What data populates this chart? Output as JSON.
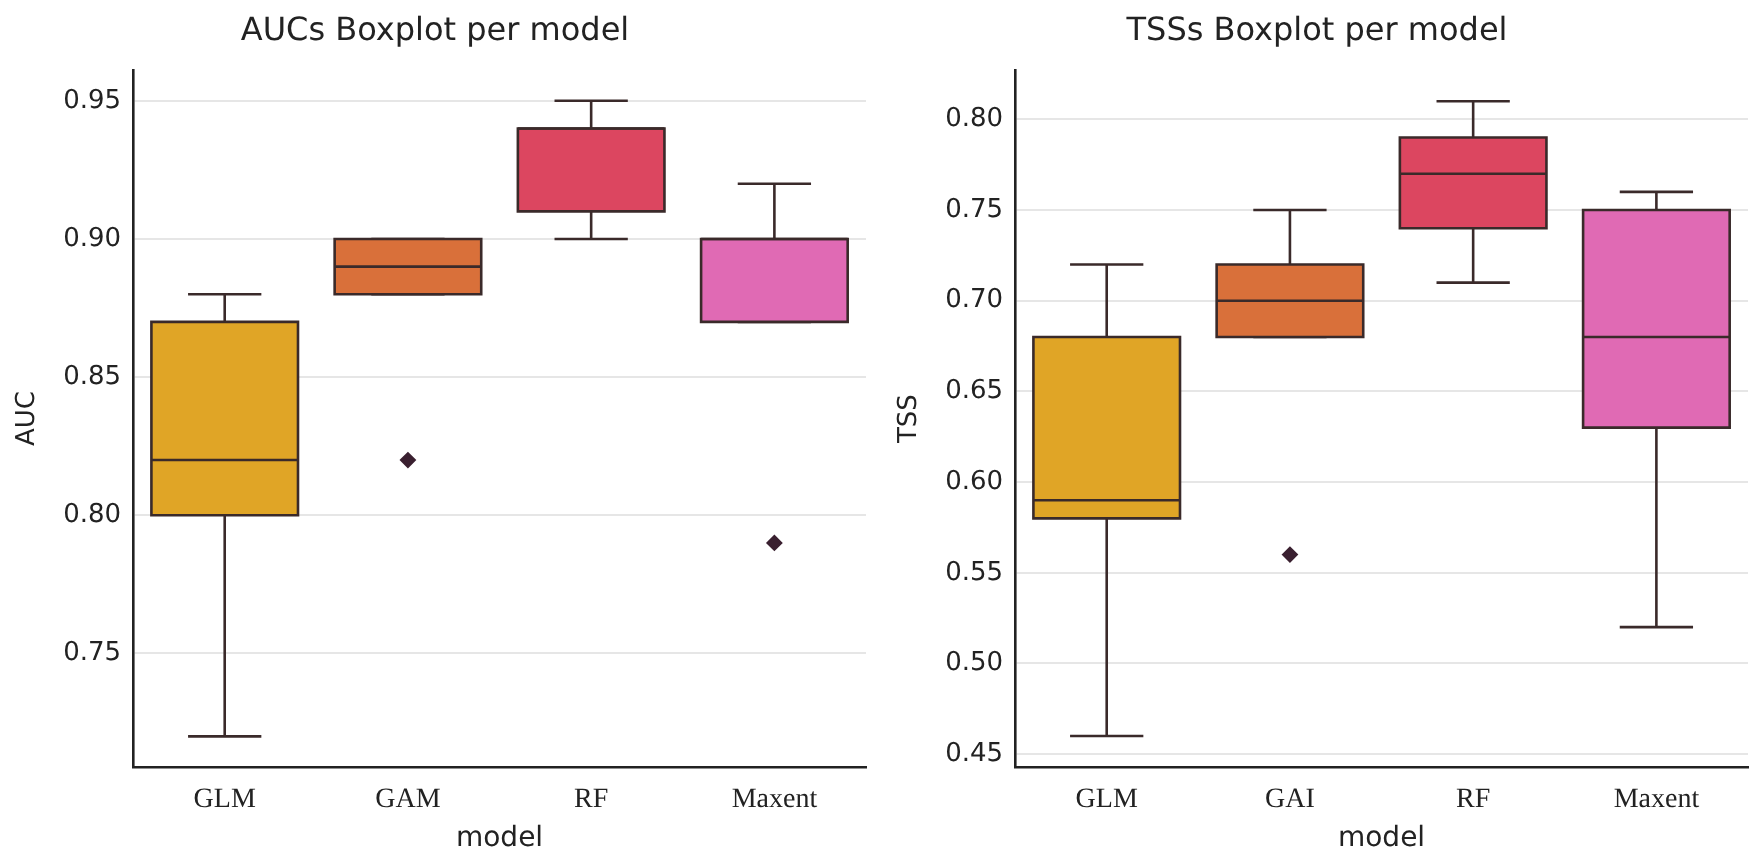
{
  "chart_data": [
    {
      "type": "box",
      "title": "AUCs Boxplot per model",
      "xlabel": "model",
      "ylabel": "AUC",
      "categories": [
        "GLM",
        "GAM",
        "RF",
        "Maxent"
      ],
      "colors": [
        "#e0a526",
        "#d9703a",
        "#dc4660",
        "#e06ab4"
      ],
      "boxes": [
        {
          "low": 0.72,
          "q1": 0.8,
          "median": 0.82,
          "q3": 0.87,
          "high": 0.88
        },
        {
          "low": 0.88,
          "q1": 0.88,
          "median": 0.89,
          "q3": 0.9,
          "high": 0.9,
          "outliers": [
            0.82
          ]
        },
        {
          "low": 0.9,
          "q1": 0.91,
          "median": 0.94,
          "q3": 0.94,
          "high": 0.95
        },
        {
          "low": 0.87,
          "q1": 0.87,
          "median": 0.9,
          "q3": 0.9,
          "high": 0.92,
          "outliers": [
            0.79
          ]
        }
      ],
      "ylim": [
        0.709,
        0.961
      ],
      "yticks": [
        0.75,
        {
          "value": 0.8,
          "label": "0.80"
        },
        0.85,
        {
          "value": 0.9,
          "label": "0.90"
        },
        0.95
      ],
      "grid": "y",
      "marker": "diamond"
    },
    {
      "type": "box",
      "title": "TSSs Boxplot per model",
      "xlabel": "model",
      "ylabel": "TSS",
      "categories": [
        "GLM",
        "GAI",
        "RF",
        "Maxent"
      ],
      "colors": [
        "#e0a526",
        "#d9703a",
        "#dc4660",
        "#e06ab4"
      ],
      "boxes": [
        {
          "low": 0.46,
          "q1": 0.58,
          "median": 0.59,
          "q3": 0.68,
          "high": 0.72
        },
        {
          "low": 0.68,
          "q1": 0.68,
          "median": 0.7,
          "q3": 0.72,
          "high": 0.75,
          "outliers": [
            0.56
          ]
        },
        {
          "low": 0.71,
          "q1": 0.74,
          "median": 0.77,
          "q3": 0.79,
          "high": 0.81
        },
        {
          "low": 0.52,
          "q1": 0.63,
          "median": 0.68,
          "q3": 0.75,
          "high": 0.76
        }
      ],
      "ylim": [
        0.443,
        0.827
      ],
      "yticks": [
        0.45,
        {
          "value": 0.5,
          "label": "0.50"
        },
        0.55,
        {
          "value": 0.6,
          "label": "0.60"
        },
        0.65,
        {
          "value": 0.7,
          "label": "0.70"
        },
        0.75,
        {
          "value": 0.8,
          "label": "0.80"
        }
      ],
      "grid": "y",
      "marker": "diamond"
    }
  ]
}
